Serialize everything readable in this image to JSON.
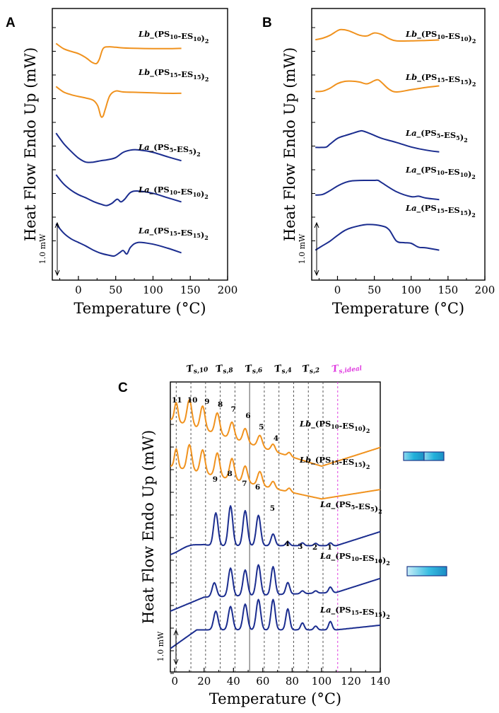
{
  "chart_data": [
    {
      "panel": "A",
      "type": "line",
      "xlabel": "Temperature (°C)",
      "ylabel": "Heat Flow Endo Up (mW)",
      "xlim": [
        -35,
        200
      ],
      "xticks": [
        0,
        50,
        100,
        150,
        200
      ],
      "scale_bar_label": "1.0 mW",
      "series": [
        {
          "name": "Lb_(PS10-ES10)2",
          "family": "Lb",
          "color": "#f0921e",
          "x": [
            -30,
            -20,
            -10,
            0,
            10,
            18,
            24,
            28,
            33,
            40,
            50,
            60,
            80,
            100,
            120,
            138
          ],
          "y": [
            1.05,
            0.82,
            0.7,
            0.6,
            0.42,
            0.22,
            0.16,
            0.35,
            0.82,
            0.9,
            0.88,
            0.85,
            0.83,
            0.82,
            0.82,
            0.83
          ]
        },
        {
          "name": "Lb_(PS15-ES15)2",
          "family": "Lb",
          "color": "#f0921e",
          "x": [
            -30,
            -20,
            -10,
            0,
            10,
            20,
            26,
            30,
            33,
            36,
            42,
            50,
            60,
            80,
            100,
            120,
            138
          ],
          "y": [
            0.96,
            0.72,
            0.6,
            0.52,
            0.45,
            0.35,
            0.1,
            -0.35,
            -0.35,
            -0.05,
            0.55,
            0.76,
            0.72,
            0.7,
            0.68,
            0.66,
            0.66
          ]
        },
        {
          "name": "La_(PS5-ES5)2",
          "family": "La",
          "color": "#1b2d8f",
          "x": [
            -30,
            -20,
            -10,
            0,
            10,
            20,
            30,
            40,
            50,
            60,
            70,
            80,
            100,
            120,
            138
          ],
          "y": [
            0.9,
            0.45,
            0.1,
            -0.2,
            -0.38,
            -0.38,
            -0.32,
            -0.27,
            -0.18,
            0.05,
            0.15,
            0.16,
            0.05,
            -0.15,
            -0.32
          ]
        },
        {
          "name": "La_(PS10-ES10)2",
          "family": "La",
          "color": "#1b2d8f",
          "x": [
            -30,
            -20,
            -10,
            0,
            10,
            20,
            30,
            38,
            45,
            52,
            57,
            62,
            70,
            80,
            100,
            120,
            138
          ],
          "y": [
            0.78,
            0.38,
            0.1,
            -0.1,
            -0.24,
            -0.4,
            -0.52,
            -0.58,
            -0.48,
            -0.3,
            -0.42,
            -0.3,
            0.0,
            0.06,
            -0.04,
            -0.24,
            -0.42
          ]
        },
        {
          "name": "La_(PS15-ES15)2",
          "family": "La",
          "color": "#1b2d8f",
          "x": [
            -30,
            -20,
            -10,
            0,
            10,
            20,
            30,
            40,
            48,
            55,
            60,
            65,
            70,
            80,
            100,
            120,
            138
          ],
          "y": [
            0.58,
            0.18,
            -0.08,
            -0.24,
            -0.4,
            -0.58,
            -0.72,
            -0.8,
            -0.84,
            -0.7,
            -0.6,
            -0.75,
            -0.45,
            -0.24,
            -0.32,
            -0.5,
            -0.7
          ]
        }
      ]
    },
    {
      "panel": "B",
      "type": "line",
      "xlabel": "Temperature (°C)",
      "ylabel": "Heat Flow Endo Up (mW)",
      "xlim": [
        -35,
        200
      ],
      "xticks": [
        0,
        50,
        100,
        150,
        200
      ],
      "scale_bar_label": "1.0 mW",
      "series": [
        {
          "name": "Lb_(PS10-ES10)2",
          "family": "Lb",
          "color": "#f0921e",
          "x": [
            -30,
            -20,
            -10,
            0,
            5,
            15,
            30,
            40,
            50,
            60,
            70,
            80,
            100,
            120,
            138
          ],
          "y": [
            0.65,
            0.72,
            0.85,
            1.05,
            1.1,
            1.05,
            0.85,
            0.82,
            0.95,
            0.88,
            0.7,
            0.6,
            0.6,
            0.62,
            0.64
          ]
        },
        {
          "name": "Lb_(PS15-ES15)2",
          "family": "Lb",
          "color": "#f0921e",
          "x": [
            -30,
            -20,
            -10,
            0,
            10,
            20,
            30,
            40,
            50,
            55,
            60,
            70,
            80,
            100,
            120,
            138
          ],
          "y": [
            0.3,
            0.32,
            0.45,
            0.65,
            0.75,
            0.76,
            0.72,
            0.64,
            0.78,
            0.82,
            0.7,
            0.4,
            0.28,
            0.38,
            0.48,
            0.55
          ]
        },
        {
          "name": "La_(PS5-ES5)2",
          "family": "La",
          "color": "#1b2d8f",
          "x": [
            -30,
            -22,
            -15,
            -10,
            0,
            10,
            20,
            30,
            35,
            45,
            60,
            80,
            100,
            120,
            138
          ],
          "y": [
            -0.2,
            -0.2,
            -0.18,
            -0.05,
            0.2,
            0.32,
            0.42,
            0.52,
            0.52,
            0.4,
            0.2,
            0.02,
            -0.18,
            -0.32,
            -0.4
          ]
        },
        {
          "name": "La_(PS10-ES10)2",
          "family": "La",
          "color": "#1b2d8f",
          "x": [
            -30,
            -20,
            -10,
            0,
            10,
            20,
            40,
            50,
            55,
            60,
            80,
            100,
            110,
            120,
            138
          ],
          "y": [
            -0.65,
            -0.62,
            -0.45,
            -0.25,
            -0.1,
            -0.02,
            0.0,
            0.0,
            0.0,
            -0.1,
            -0.5,
            -0.72,
            -0.7,
            -0.78,
            -0.85
          ]
        },
        {
          "name": "La_(PS15-ES15)2",
          "family": "La",
          "color": "#1b2d8f",
          "x": [
            -30,
            -20,
            -10,
            0,
            10,
            20,
            40,
            60,
            70,
            80,
            90,
            100,
            110,
            120,
            138
          ],
          "y": [
            -1.05,
            -0.85,
            -0.65,
            -0.4,
            -0.18,
            -0.05,
            0.08,
            0.02,
            -0.15,
            -0.65,
            -0.72,
            -0.75,
            -0.92,
            -0.95,
            -1.05
          ]
        }
      ]
    },
    {
      "panel": "C",
      "type": "line",
      "xlabel": "Temperature (°C)",
      "ylabel": "Heat Flow Endo Up (mW)",
      "xlim": [
        -3,
        140
      ],
      "xticks": [
        0,
        20,
        40,
        60,
        80,
        100,
        120,
        140
      ],
      "scale_bar_label": "1.0 mW",
      "series": [
        {
          "name": "Lb_(PS10-ES10)2",
          "family": "Lb",
          "color": "#f0921e",
          "baseline": [
            [
              -3,
              0.54
            ],
            [
              100,
              0.44
            ],
            [
              140,
              0.48
            ]
          ],
          "peaks": [
            [
              1,
              0.04,
              1.2
            ],
            [
              10,
              0.055,
              1.6
            ],
            [
              19,
              0.05,
              1.6
            ],
            [
              29,
              0.045,
              1.6
            ],
            [
              39,
              0.035,
              1.6
            ],
            [
              48,
              0.03,
              1.6
            ],
            [
              58,
              0.025,
              1.6
            ],
            [
              67,
              0.015,
              1.4
            ],
            [
              78,
              0.008,
              1.2
            ]
          ]
        },
        {
          "name": "Lb_(PS15-ES15)2",
          "family": "Lb",
          "color": "#f0921e",
          "baseline": [
            [
              -3,
              0.44
            ],
            [
              100,
              0.37
            ],
            [
              140,
              0.39
            ]
          ],
          "peaks": [
            [
              1,
              0.04,
              1.2
            ],
            [
              10,
              0.055,
              1.6
            ],
            [
              19,
              0.05,
              1.6
            ],
            [
              29,
              0.05,
              1.6
            ],
            [
              39,
              0.045,
              1.6
            ],
            [
              48,
              0.035,
              1.6
            ],
            [
              58,
              0.03,
              1.6
            ],
            [
              67,
              0.015,
              1.4
            ],
            [
              78,
              0.008,
              1.2
            ]
          ]
        },
        {
          "name": "La_(PS5-ES5)2",
          "family": "La",
          "color": "#1b2d8f",
          "baseline": [
            [
              -3,
              0.25
            ],
            [
              10,
              0.26
            ],
            [
              20,
              0.27
            ],
            [
              110,
              0.27
            ],
            [
              120,
              0.28
            ],
            [
              140,
              0.3
            ]
          ],
          "peaks": [
            [
              10,
              0.01,
              6
            ],
            [
              28,
              0.07,
              1.5
            ],
            [
              38,
              0.085,
              1.5
            ],
            [
              48,
              0.075,
              1.5
            ],
            [
              57,
              0.065,
              1.5
            ],
            [
              67,
              0.025,
              1.4
            ],
            [
              77,
              0.008,
              1.3
            ],
            [
              87,
              0.006,
              1.2
            ],
            [
              96,
              0.005,
              1.2
            ],
            [
              106,
              0.006,
              1.2
            ]
          ]
        },
        {
          "name": "La_(PS10-ES10)2",
          "family": "La",
          "color": "#1b2d8f",
          "baseline": [
            [
              -3,
              0.13
            ],
            [
              20,
              0.16
            ],
            [
              110,
              0.17
            ],
            [
              140,
              0.2
            ]
          ],
          "peaks": [
            [
              27,
              0.03,
              1.5
            ],
            [
              38,
              0.06,
              1.5
            ],
            [
              48,
              0.055,
              1.5
            ],
            [
              57,
              0.065,
              1.5
            ],
            [
              67,
              0.06,
              1.4
            ],
            [
              77,
              0.025,
              1.3
            ],
            [
              87,
              0.006,
              1.2
            ],
            [
              96,
              0.005,
              1.2
            ],
            [
              106,
              0.012,
              1.2
            ]
          ]
        },
        {
          "name": "La_(PS15-ES15)2",
          "family": "La",
          "color": "#1b2d8f",
          "baseline": [
            [
              -3,
              0.05
            ],
            [
              15,
              0.09
            ],
            [
              110,
              0.09
            ],
            [
              140,
              0.1
            ]
          ],
          "peaks": [
            [
              28,
              0.04,
              1.5
            ],
            [
              38,
              0.05,
              1.5
            ],
            [
              48,
              0.055,
              1.5
            ],
            [
              57,
              0.065,
              1.5
            ],
            [
              67,
              0.065,
              1.4
            ],
            [
              77,
              0.045,
              1.3
            ],
            [
              87,
              0.015,
              1.2
            ],
            [
              96,
              0.008,
              1.2
            ],
            [
              106,
              0.018,
              1.2
            ]
          ]
        }
      ],
      "upper_peak_numbers": [
        "11",
        "10",
        "9",
        "8",
        "7",
        "6",
        "5",
        "4"
      ],
      "middle_peak_numbers": [
        "9",
        "8",
        "7",
        "6",
        "5",
        "4",
        "3",
        "2",
        "1"
      ],
      "transition_labels": [
        {
          "main": "T",
          "sub": "s,10",
          "x": 12
        },
        {
          "main": "T",
          "sub": "s,8",
          "x": 32
        },
        {
          "main": "T",
          "sub": "s,6",
          "x": 52
        },
        {
          "main": "T",
          "sub": "s,4",
          "x": 72
        },
        {
          "main": "T",
          "sub": "s,2",
          "x": 91
        },
        {
          "main": "T",
          "sub": "s,ideal",
          "x": 111,
          "color": "#e03ee0"
        }
      ]
    }
  ],
  "panel_labels": {
    "A": "A",
    "B": "B",
    "C": "C"
  },
  "sample_labels": {
    "Lb_PS10_ES10": {
      "prefix": "Lb",
      "sep": "_(PS",
      "n1": "10",
      "mid": "-ES",
      "n2": "10",
      "close": ")",
      "n3": "2"
    },
    "Lb_PS15_ES15": {
      "prefix": "Lb",
      "sep": "_(PS",
      "n1": "15",
      "mid": "-ES",
      "n2": "15",
      "close": ")",
      "n3": "2"
    },
    "La_PS5_ES5": {
      "prefix": "La",
      "sep": "_(PS",
      "n1": "5",
      "mid": "-ES",
      "n2": "5",
      "close": ")",
      "n3": "2"
    },
    "La_PS10_ES10": {
      "prefix": "La",
      "sep": "_(PS",
      "n1": "10",
      "mid": "-ES",
      "n2": "10",
      "close": ")",
      "n3": "2"
    },
    "La_PS15_ES15": {
      "prefix": "La",
      "sep": "_(PS",
      "n1": "15",
      "mid": "-ES",
      "n2": "15",
      "close": ")",
      "n3": "2"
    }
  },
  "colors": {
    "lb": "#f0921e",
    "la": "#1b2d8f",
    "ideal": "#e03ee0",
    "bar_fill": "#21b1db",
    "bar_stroke": "#1e3a8a"
  }
}
